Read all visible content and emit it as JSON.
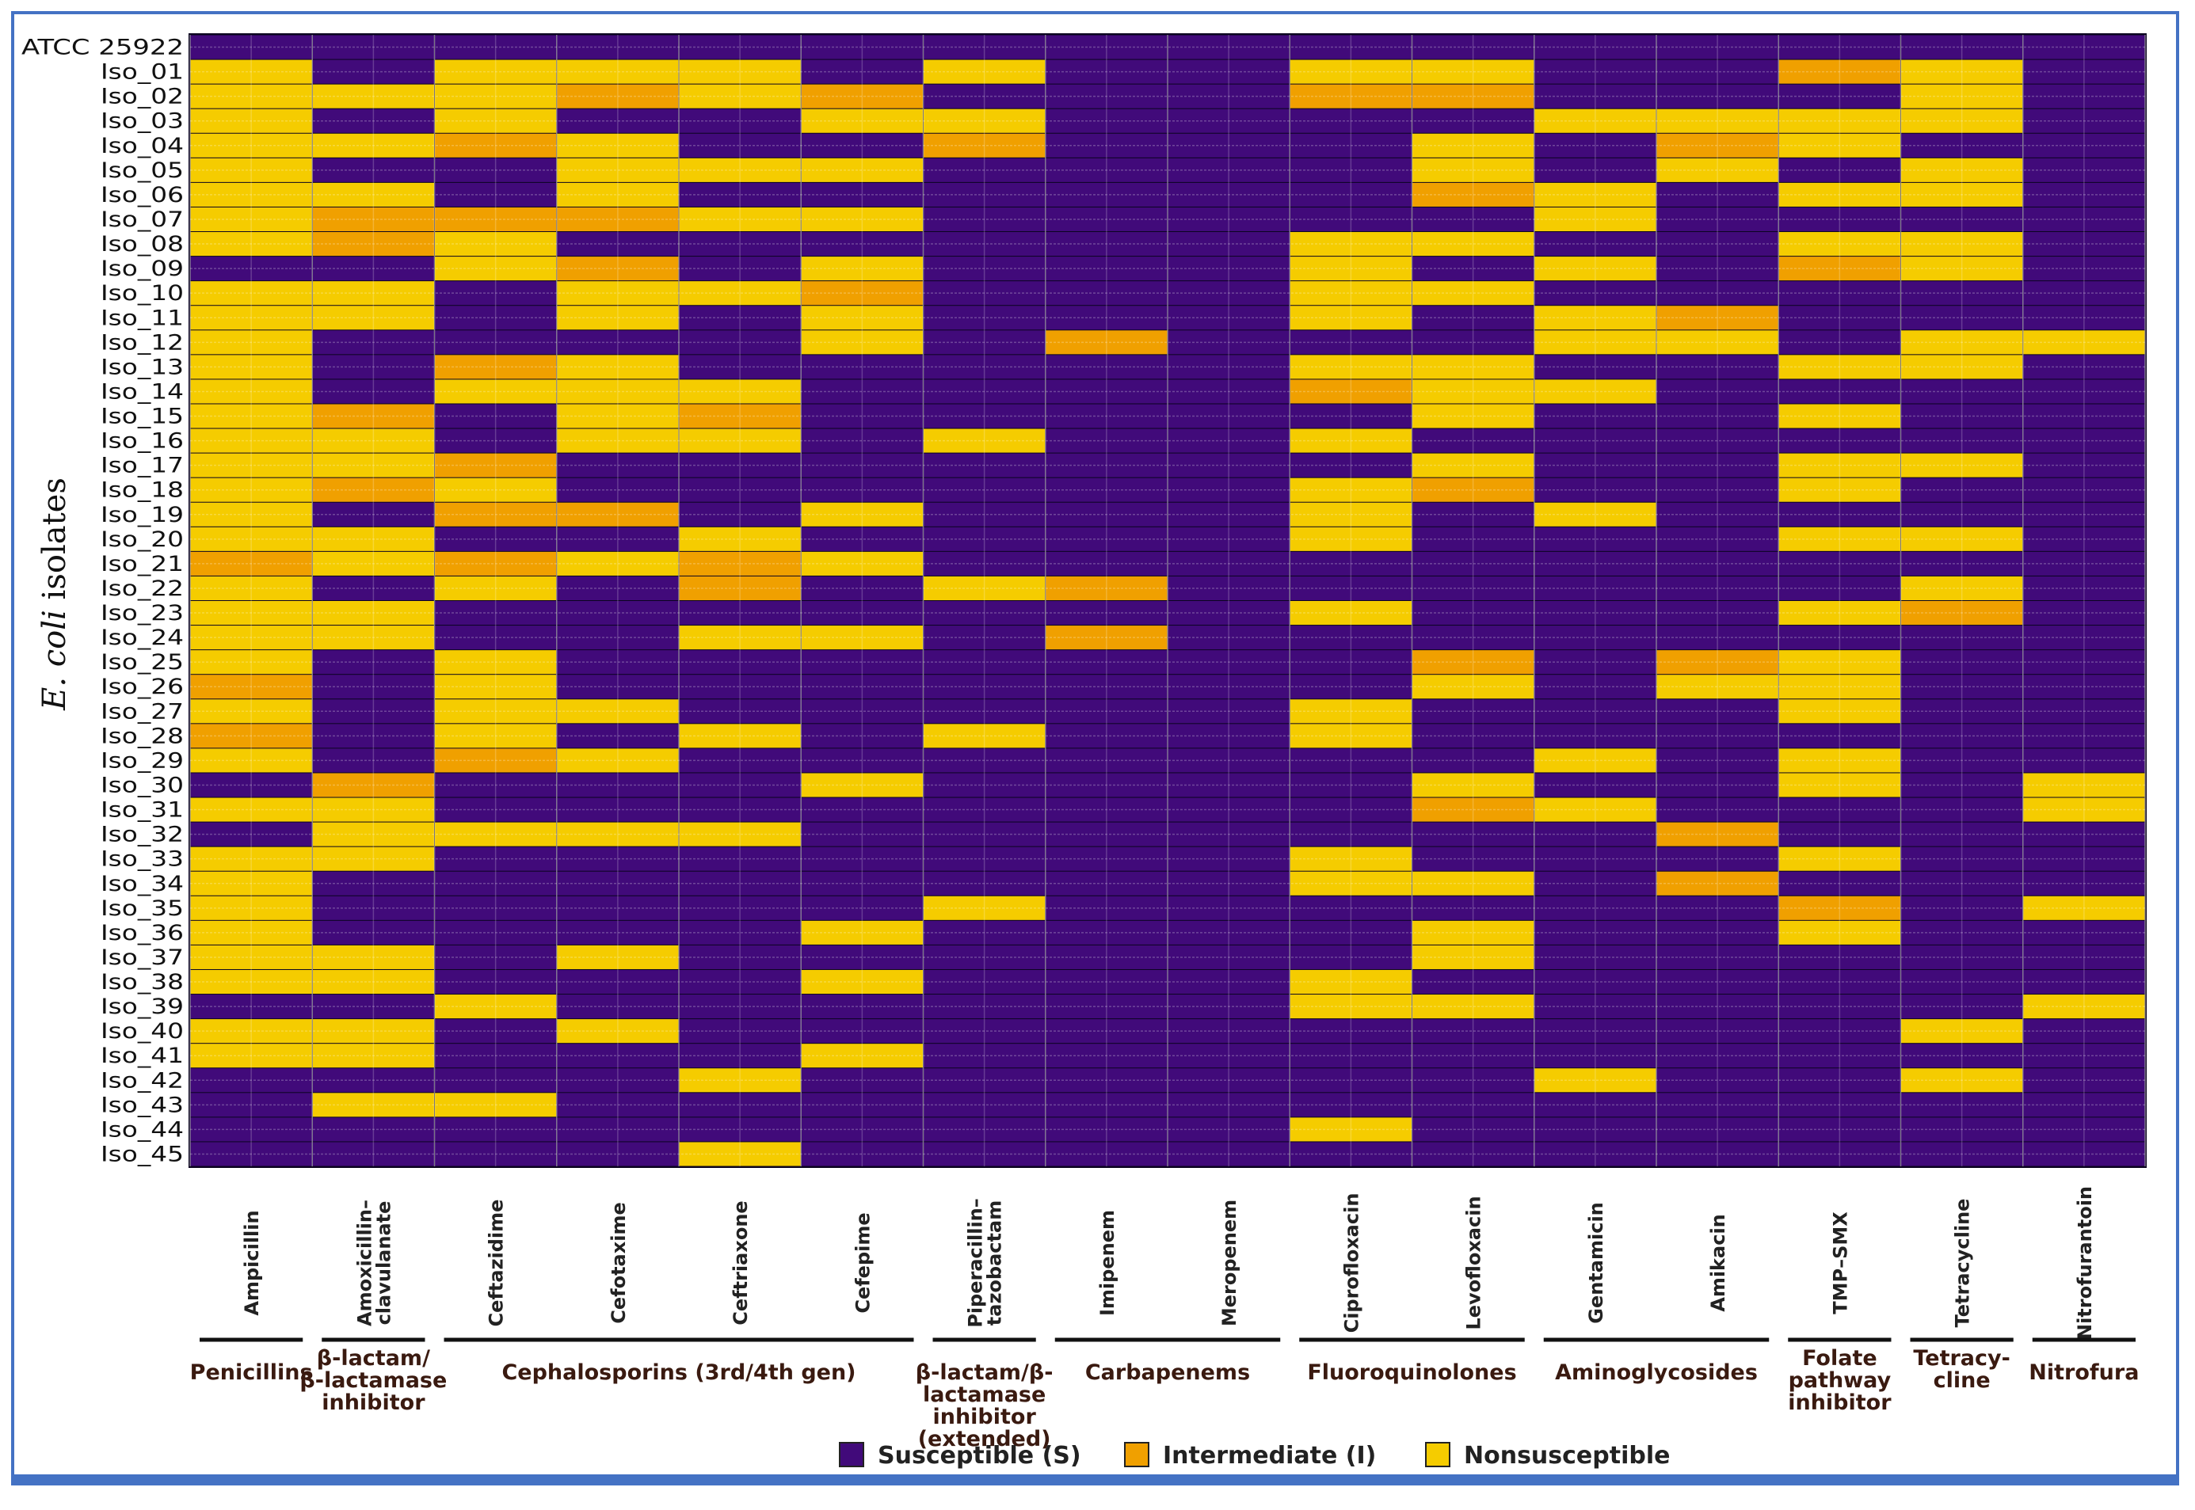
{
  "chart_data": {
    "type": "heatmap",
    "ylabel_italic": "E. coli",
    "ylabel_rest": " isolates",
    "rows": [
      "ATCC 25922",
      "Iso_01",
      "Iso_02",
      "Iso_03",
      "Iso_04",
      "Iso_05",
      "Iso_06",
      "Iso_07",
      "Iso_08",
      "Iso_09",
      "Iso_10",
      "Iso_11",
      "Iso_12",
      "Iso_13",
      "Iso_14",
      "Iso_15",
      "Iso_16",
      "Iso_17",
      "Iso_18",
      "Iso_19",
      "Iso_20",
      "Iso_21",
      "Iso_22",
      "Iso_23",
      "Iso_24",
      "Iso_25",
      "Iso_26",
      "Iso_27",
      "Iso_28",
      "Iso_29",
      "Iso_30",
      "Iso_31",
      "Iso_32",
      "Iso_33",
      "Iso_34",
      "Iso_35",
      "Iso_36",
      "Iso_37",
      "Iso_38",
      "Iso_39",
      "Iso_40",
      "Iso_41",
      "Iso_42",
      "Iso_43",
      "Iso_44",
      "Iso_45"
    ],
    "columns": [
      [
        "Ampicillin"
      ],
      [
        "Amoxicillin–",
        "clavulanate"
      ],
      [
        "Ceftazidime"
      ],
      [
        "Cefotaxime"
      ],
      [
        "Ceftriaxone"
      ],
      [
        "Cefepime"
      ],
      [
        "Piperacillin–",
        "tazobactam"
      ],
      [
        "Imipenem"
      ],
      [
        "Meropenem"
      ],
      [
        "Ciprofloxacin"
      ],
      [
        "Levofloxacin"
      ],
      [
        "Gentamicin"
      ],
      [
        "Amikacin"
      ],
      [
        "TMP–SMX"
      ],
      [
        "Tetracycline"
      ],
      [
        "Nitrofurantoin"
      ]
    ],
    "groups": [
      {
        "lines": [
          "Penicillins"
        ],
        "from": 0,
        "to": 0
      },
      {
        "lines": [
          "β-lactam/",
          "β-lactamase",
          "inhibitor"
        ],
        "from": 1,
        "to": 1
      },
      {
        "lines": [
          "Cephalosporins (3rd/4th gen)"
        ],
        "from": 2,
        "to": 5
      },
      {
        "lines": [
          "β-lactam/β-",
          "lactamase",
          "inhibitor",
          "(extended)"
        ],
        "from": 6,
        "to": 6
      },
      {
        "lines": [
          "Carbapenems"
        ],
        "from": 7,
        "to": 8
      },
      {
        "lines": [
          "Fluoroquinolones"
        ],
        "from": 9,
        "to": 10
      },
      {
        "lines": [
          "Aminoglycosides"
        ],
        "from": 11,
        "to": 12
      },
      {
        "lines": [
          "Folate",
          "pathway",
          "inhibitor"
        ],
        "from": 13,
        "to": 13
      },
      {
        "lines": [
          "Tetracy-",
          "cline"
        ],
        "from": 14,
        "to": 14
      },
      {
        "lines": [
          "Nitrofura"
        ],
        "from": 15,
        "to": 15
      }
    ],
    "categories": {
      "S": "Susceptible (S)",
      "I": "Intermediate (I)",
      "N": "Nonsusceptible"
    },
    "colors": {
      "S": "#410a7a",
      "I": "#f0a000",
      "N": "#f5cc00"
    },
    "values": [
      "SSSSSSSSSSSSSSSS",
      "NSNNNSNSSNNSSINS",
      "NNNINISSSIISSSNS",
      "NSNSSNNSSSSNNNNS",
      "NNINSSISSSNSINSS",
      "NSSNNNSSSSNSNSNS",
      "NNSNSSSSSSINSNNS",
      "NIIINNSSSSSNSSSS",
      "NINSSSSSSNNSSNNS",
      "SSNISNSSSNSNSINS",
      "NNSNNISSSNNSSSSS",
      "NNSNSNSSSNSNISSS",
      "NSSSSNSISSSNNSNN",
      "NSINSSSSSNNSSNNS",
      "NSNNNSSSSINNSSSS",
      "NISNISSSSSNSSNSS",
      "NNSNNSNSSNSSSSSS",
      "NNISSSSSSSNSSNNS",
      "NINSSSSSSNISSNSS",
      "NSIISNSSSNSNSSSS",
      "NNSSNSSSSNSSSNNS",
      "INININSSSSSSSSSS",
      "NSNSISNISSSSSSNS",
      "NNSSSSSSSNSSSNIS",
      "NNSSNNSISSSSSSSS",
      "NSNSSSSSSSISINSS",
      "ISNSSSSSSSNSNNSS",
      "NSNNSSSSSNSSSNSS",
      "ISNSNSNSSNSSSSSS",
      "NSINSSSSSSSNSNSS",
      "SISSSNSSSSNSSNSN",
      "NNSSSSSSSSINSSSN",
      "SNNNNSSSSSSSISSS",
      "NNSSSSSSSNSSSNSS",
      "NSSSSSSSSNNSISSS",
      "NSSSSSNSSSSSSISN",
      "NSSSSNSSSSNSSNSS",
      "NNSNSSSSSSNSSSSS",
      "NNSSSNSSSNSSSSSS",
      "SSNSSSSSSNNSSSSN",
      "NNSNSSSSSSSSSSNS",
      "NNSSSNSSSSSSSSSS",
      "SSSSNSSSSSSNSSNS",
      "SNNSSSSSSSSSSSSS",
      "SSSSSSSSSNSSSSSS",
      "SSSSNSSSSSSSSSSS"
    ]
  }
}
